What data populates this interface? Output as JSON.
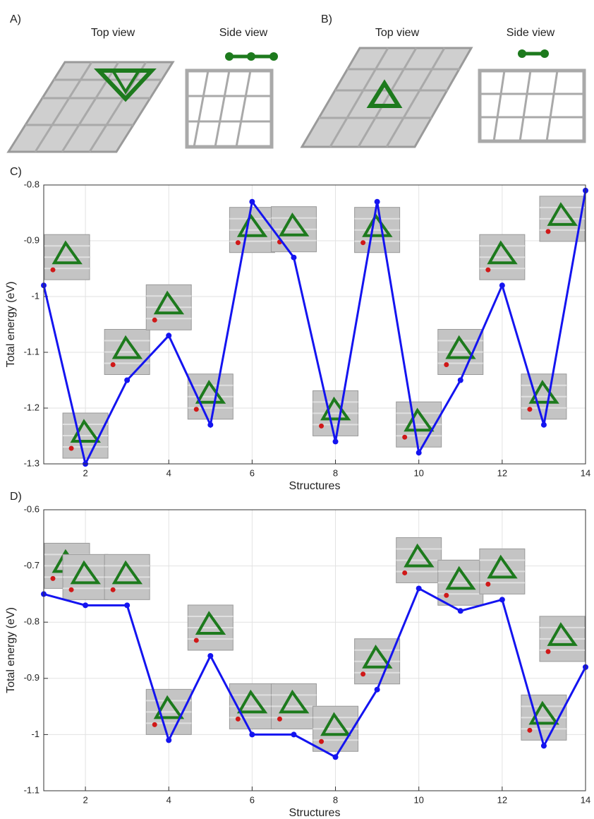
{
  "figure": {
    "panels": [
      {
        "label": "A)",
        "views": [
          "Top view",
          "Side view"
        ]
      },
      {
        "label": "B)",
        "views": [
          "Top view",
          "Side view"
        ]
      }
    ]
  },
  "chart_data": [
    {
      "type": "line",
      "panel": "C)",
      "x_label": "Structures",
      "y_label": "Total energy (eV)",
      "x": [
        1,
        2,
        3,
        4,
        5,
        6,
        7,
        8,
        9,
        10,
        11,
        12,
        13,
        14
      ],
      "values": [
        -0.98,
        -1.3,
        -1.15,
        -1.07,
        -1.23,
        -0.83,
        -0.93,
        -1.26,
        -0.83,
        -1.28,
        -1.15,
        -0.98,
        -1.23,
        -0.81
      ],
      "color": "#1414f0",
      "xlim": [
        1,
        14
      ],
      "xticks": [
        2,
        4,
        6,
        8,
        10,
        12,
        14
      ],
      "ylim": [
        -1.3,
        -0.8
      ],
      "yticks": [
        -1.3,
        -1.2,
        -1.1,
        -1,
        -0.9,
        -0.8
      ],
      "grid": true
    },
    {
      "type": "line",
      "panel": "D)",
      "x_label": "Structures",
      "y_label": "Total energy (eV)",
      "x": [
        1,
        2,
        3,
        4,
        5,
        6,
        7,
        8,
        9,
        10,
        11,
        12,
        13,
        14
      ],
      "values": [
        -0.75,
        -0.77,
        -0.77,
        -1.01,
        -0.86,
        -1,
        -1,
        -1.04,
        -0.92,
        -0.74,
        -0.78,
        -0.76,
        -1.02,
        -0.88
      ],
      "color": "#1414f0",
      "xlim": [
        1,
        14
      ],
      "xticks": [
        2,
        4,
        6,
        8,
        10,
        12,
        14
      ],
      "ylim": [
        -1.1,
        -0.6
      ],
      "yticks": [
        -1.1,
        -1,
        -0.9,
        -0.8,
        -0.7,
        -0.6
      ],
      "grid": true
    }
  ]
}
